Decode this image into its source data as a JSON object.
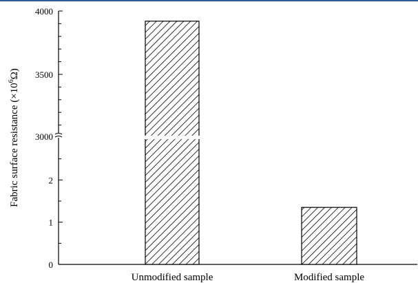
{
  "chart_data": {
    "type": "bar",
    "ylabel": "Fabric surface resistance (×10",
    "ylabel_sup": "6",
    "ylabel_unit": "Ω)",
    "categories": [
      "Unmodified sample",
      "Modified sample"
    ],
    "values": [
      3920,
      1.35
    ],
    "axis_break": {
      "lower_range": [
        0,
        3
      ],
      "upper_range": [
        3000,
        4000
      ]
    },
    "lower_ticks": [
      "0",
      "1",
      "2"
    ],
    "upper_ticks": [
      "3000",
      "3500",
      "4000"
    ],
    "bar_pattern": "diagonal-hatch",
    "grid": false
  },
  "colors": {
    "bar_stroke": "#000000",
    "hatch": "#000000",
    "accent_bar": "#2f5d9a"
  }
}
